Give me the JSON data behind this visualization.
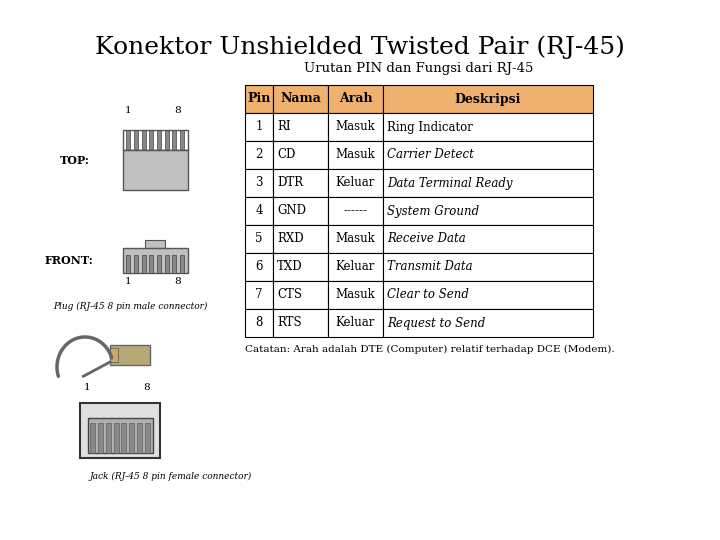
{
  "title": "Konektor Unshielded Twisted Pair (RJ-45)",
  "table_title": "Urutan PIN dan Fungsi dari RJ-45",
  "header": [
    "Pin",
    "Nama",
    "Arah",
    "Deskripsi"
  ],
  "header_bg": "#F0B070",
  "rows": [
    [
      "1",
      "RI",
      "Masuk",
      "Ring Indicator"
    ],
    [
      "2",
      "CD",
      "Masuk",
      "Carrier Detect"
    ],
    [
      "3",
      "DTR",
      "Keluar",
      "Data Terminal Ready"
    ],
    [
      "4",
      "GND",
      "------",
      "System Ground"
    ],
    [
      "5",
      "RXD",
      "Masuk",
      "Receive Data"
    ],
    [
      "6",
      "TXD",
      "Keluar",
      "Transmit Data"
    ],
    [
      "7",
      "CTS",
      "Masuk",
      "Clear to Send"
    ],
    [
      "8",
      "RTS",
      "Keluar",
      "Request to Send"
    ]
  ],
  "italic_col3_rows": [
    1,
    2,
    3,
    4,
    5,
    6,
    7
  ],
  "footnote": "Catatan: Arah adalah DTE (Computer) relatif terhadap DCE (Modem).",
  "bg_color": "#ffffff",
  "border_color": "#000000",
  "title_fontsize": 18,
  "table_title_fontsize": 9.5,
  "header_fontsize": 9,
  "cell_fontsize": 8.5,
  "footnote_fontsize": 7.5,
  "label_fontsize": 6.5,
  "connector_label_fontsize": 8,
  "pin_num_fontsize": 7.5,
  "top_label": "TOP:",
  "front_label": "FRONT:",
  "plug_label": "Plug (RJ-45 8 pin male connector)",
  "jack_label": "Jack (RJ-45 8 pin female connector)"
}
